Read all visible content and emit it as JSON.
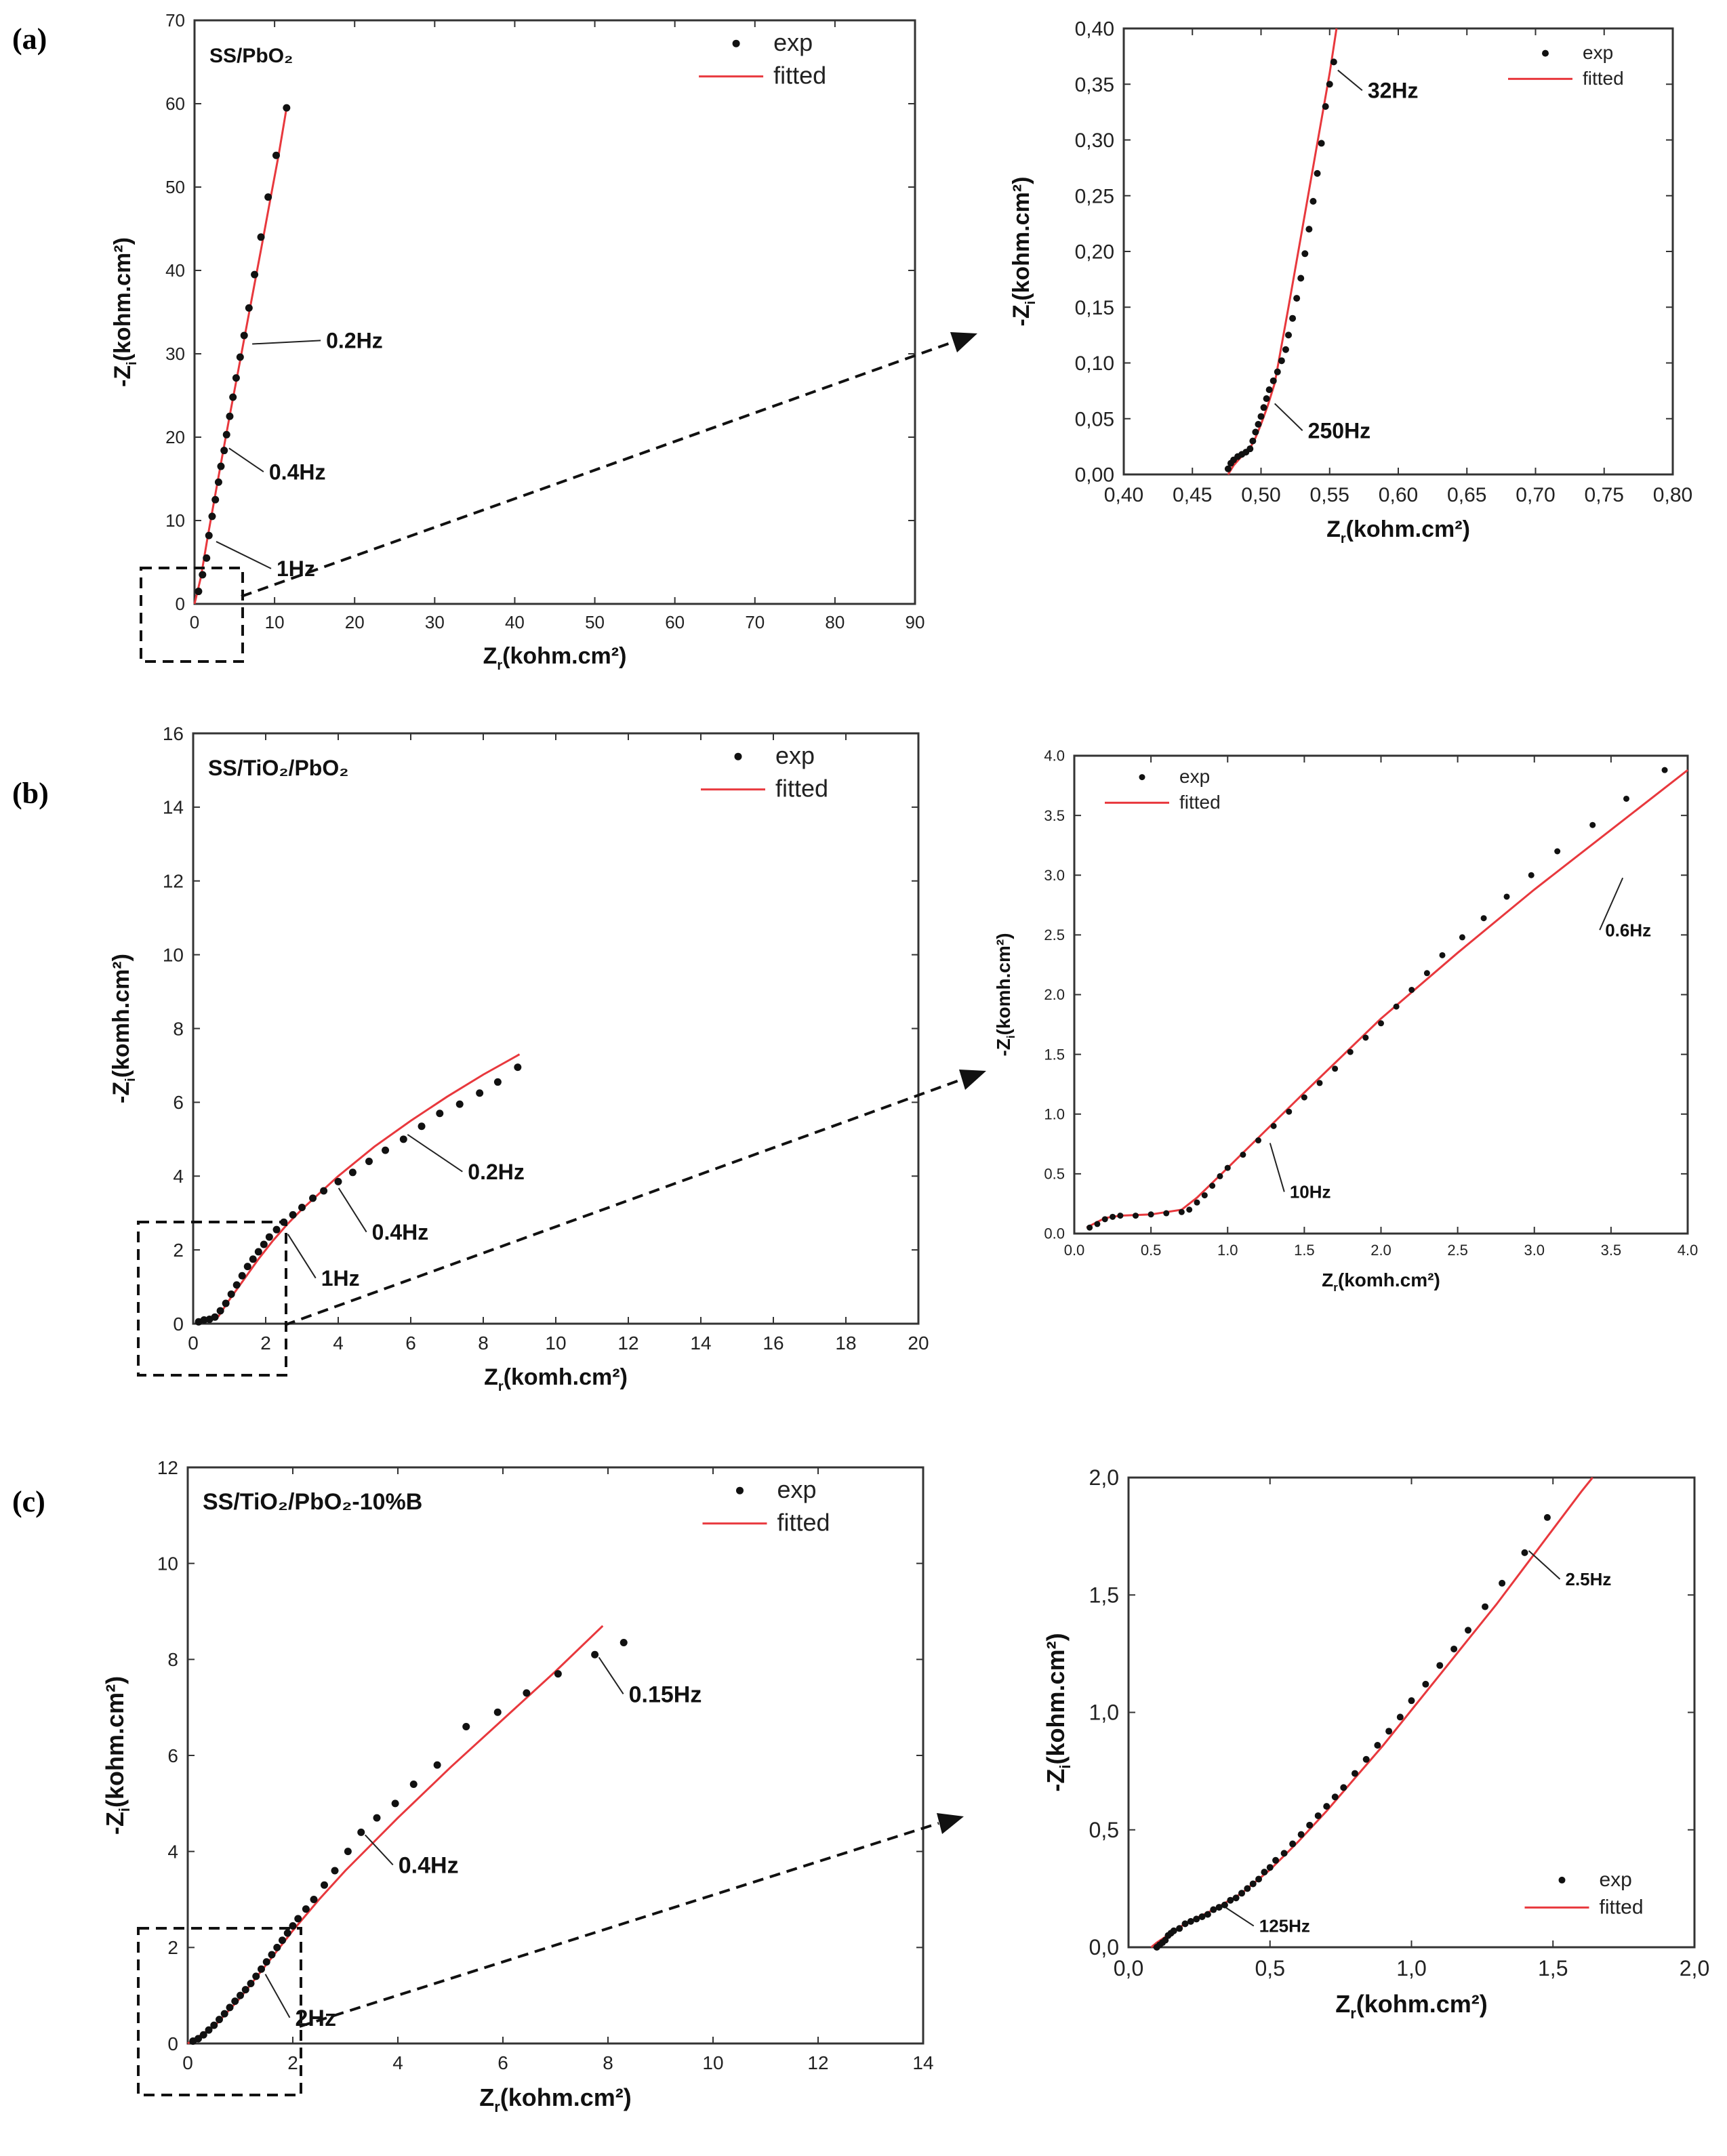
{
  "panel_labels": [
    "(a)",
    "(b)",
    "(c)"
  ],
  "legend": {
    "exp": "exp",
    "fitted": "fitted"
  },
  "colors": {
    "exp": "#111111",
    "fitted": "#e8383d",
    "axis": "#333333"
  },
  "chart_data": [
    {
      "id": "a_main",
      "type": "scatter",
      "panel": "(a)",
      "title": "SS/PbO₂",
      "xlabel": "Zr(kohm.cm²)",
      "ylabel": "-Zi(kohm.cm²)",
      "xlim": [
        0,
        90
      ],
      "ylim": [
        0,
        70
      ],
      "xticks": [
        0,
        10,
        20,
        30,
        40,
        50,
        60,
        70,
        80,
        90
      ],
      "yticks": [
        0,
        10,
        20,
        30,
        40,
        50,
        60,
        70
      ],
      "xtick_labels": [
        "0",
        "10",
        "20",
        "30",
        "40",
        "50",
        "60",
        "70",
        "80",
        "90"
      ],
      "ytick_labels": [
        "0",
        "10",
        "20",
        "30",
        "40",
        "50",
        "60",
        "70"
      ],
      "series": [
        {
          "name": "exp",
          "kind": "points",
          "x": [
            0.5,
            1.0,
            1.5,
            1.8,
            2.2,
            2.6,
            3.0,
            3.3,
            3.7,
            4.0,
            4.4,
            4.8,
            5.2,
            5.7,
            6.2,
            6.8,
            7.5,
            8.3,
            9.2,
            10.2,
            11.5
          ],
          "y": [
            1.5,
            3.5,
            5.5,
            8.2,
            10.5,
            12.5,
            14.6,
            16.5,
            18.4,
            20.3,
            22.5,
            24.8,
            27.1,
            29.6,
            32.2,
            35.5,
            39.5,
            44.0,
            48.8,
            53.8,
            59.5
          ]
        },
        {
          "name": "fitted",
          "kind": "line",
          "x": [
            0,
            0.8,
            1.6,
            2.5,
            3.5,
            4.5,
            5.5,
            6.5,
            7.5,
            8.5,
            9.5,
            10.5,
            11.5
          ],
          "y": [
            0,
            3.2,
            7.8,
            12.6,
            17.9,
            23.1,
            28.2,
            33.3,
            38.4,
            43.5,
            48.7,
            53.8,
            59.5
          ]
        }
      ],
      "annotations": [
        {
          "text": "0.2Hz",
          "x": 6.7,
          "y": 31.5
        },
        {
          "text": "0.4Hz",
          "x": 3.8,
          "y": 19.0
        },
        {
          "text": "1Hz",
          "x": 2.2,
          "y": 7.8
        }
      ],
      "legend_pos": "top-right"
    },
    {
      "id": "a_zoom",
      "type": "scatter",
      "panel": "(a)",
      "xlabel": "Zr(kohm.cm²)",
      "ylabel": "-Zi(kohm.cm²)",
      "xlim": [
        0.4,
        0.8
      ],
      "ylim": [
        0.0,
        0.4
      ],
      "xticks": [
        0.4,
        0.45,
        0.5,
        0.55,
        0.6,
        0.65,
        0.7,
        0.75,
        0.8
      ],
      "yticks": [
        0.0,
        0.05,
        0.1,
        0.15,
        0.2,
        0.25,
        0.3,
        0.35,
        0.4
      ],
      "xtick_labels": [
        "0,40",
        "0,45",
        "0,50",
        "0,55",
        "0,60",
        "0,65",
        "0,70",
        "0,75",
        "0,80"
      ],
      "ytick_labels": [
        "0,00",
        "0,05",
        "0,10",
        "0,15",
        "0,20",
        "0,25",
        "0,30",
        "0,35",
        "0,40"
      ],
      "series": [
        {
          "name": "exp",
          "kind": "points",
          "x": [
            0.476,
            0.478,
            0.48,
            0.483,
            0.486,
            0.489,
            0.492,
            0.494,
            0.496,
            0.498,
            0.5,
            0.502,
            0.504,
            0.506,
            0.509,
            0.512,
            0.515,
            0.518,
            0.52,
            0.523,
            0.526,
            0.529,
            0.532,
            0.535,
            0.538,
            0.541,
            0.544,
            0.547,
            0.55,
            0.553
          ],
          "y": [
            0.005,
            0.01,
            0.013,
            0.016,
            0.018,
            0.02,
            0.023,
            0.03,
            0.038,
            0.045,
            0.052,
            0.06,
            0.068,
            0.076,
            0.084,
            0.092,
            0.102,
            0.112,
            0.125,
            0.14,
            0.158,
            0.176,
            0.198,
            0.22,
            0.245,
            0.27,
            0.297,
            0.33,
            0.35,
            0.37
          ]
        },
        {
          "name": "fitted",
          "kind": "line",
          "x": [
            0.476,
            0.48,
            0.485,
            0.49,
            0.495,
            0.5,
            0.505,
            0.51,
            0.52,
            0.53,
            0.54,
            0.55,
            0.555
          ],
          "y": [
            0.0,
            0.008,
            0.015,
            0.02,
            0.03,
            0.045,
            0.062,
            0.082,
            0.15,
            0.22,
            0.29,
            0.36,
            0.4
          ]
        }
      ],
      "annotations": [
        {
          "text": "32Hz",
          "x": 0.553,
          "y": 0.365
        },
        {
          "text": "250Hz",
          "x": 0.507,
          "y": 0.066
        }
      ],
      "legend_pos": "top-right"
    },
    {
      "id": "b_main",
      "type": "scatter",
      "panel": "(b)",
      "title": "SS/TiO₂/PbO₂",
      "xlabel": "Zr(komh.cm²)",
      "ylabel": "-Zi(komh.cm²)",
      "xlim": [
        0,
        20
      ],
      "ylim": [
        0,
        16
      ],
      "xticks": [
        0,
        2,
        4,
        6,
        8,
        10,
        12,
        14,
        16,
        18,
        20
      ],
      "yticks": [
        0,
        2,
        4,
        6,
        8,
        10,
        12,
        14,
        16
      ],
      "xtick_labels": [
        "0",
        "2",
        "4",
        "6",
        "8",
        "10",
        "12",
        "14",
        "16",
        "18",
        "20"
      ],
      "ytick_labels": [
        "0",
        "2",
        "4",
        "6",
        "8",
        "10",
        "12",
        "14",
        "16"
      ],
      "series": [
        {
          "name": "exp",
          "kind": "points",
          "x": [
            0.15,
            0.3,
            0.45,
            0.6,
            0.75,
            0.9,
            1.05,
            1.2,
            1.35,
            1.5,
            1.65,
            1.8,
            1.95,
            2.1,
            2.3,
            2.5,
            2.75,
            3.0,
            3.3,
            3.6,
            4.0,
            4.4,
            4.85,
            5.3,
            5.8,
            6.3,
            6.8,
            7.35,
            7.9,
            8.4,
            8.95
          ],
          "y": [
            0.05,
            0.1,
            0.12,
            0.18,
            0.35,
            0.55,
            0.8,
            1.05,
            1.3,
            1.55,
            1.75,
            1.95,
            2.15,
            2.35,
            2.55,
            2.75,
            2.95,
            3.15,
            3.4,
            3.6,
            3.85,
            4.1,
            4.4,
            4.7,
            5.0,
            5.35,
            5.7,
            5.95,
            6.25,
            6.55,
            6.95
          ]
        },
        {
          "name": "fitted",
          "kind": "line",
          "x": [
            0.1,
            0.4,
            0.7,
            1.0,
            1.4,
            1.8,
            2.2,
            2.6,
            3.0,
            3.5,
            4.0,
            5.0,
            6.0,
            7.0,
            8.0,
            9.0
          ],
          "y": [
            0.05,
            0.12,
            0.2,
            0.65,
            1.2,
            1.75,
            2.25,
            2.7,
            3.1,
            3.55,
            4.0,
            4.8,
            5.5,
            6.15,
            6.75,
            7.3
          ]
        }
      ],
      "annotations": [
        {
          "text": "0.2Hz",
          "x": 5.8,
          "y": 5.2
        },
        {
          "text": "0.4Hz",
          "x": 3.9,
          "y": 3.75
        },
        {
          "text": "1Hz",
          "x": 2.5,
          "y": 2.5
        }
      ],
      "legend_pos": "top-right"
    },
    {
      "id": "b_zoom",
      "type": "scatter",
      "panel": "(b)",
      "xlabel": "Zr(komh.cm²)",
      "ylabel": "-Zi(komh.cm²)",
      "xlim": [
        0.0,
        4.0
      ],
      "ylim": [
        0.0,
        4.0
      ],
      "xticks": [
        0.0,
        0.5,
        1.0,
        1.5,
        2.0,
        2.5,
        3.0,
        3.5,
        4.0
      ],
      "yticks": [
        0.0,
        0.5,
        1.0,
        1.5,
        2.0,
        2.5,
        3.0,
        3.5,
        4.0
      ],
      "xtick_labels": [
        "0.0",
        "0.5",
        "1.0",
        "1.5",
        "2.0",
        "2.5",
        "3.0",
        "3.5",
        "4.0"
      ],
      "ytick_labels": [
        "0.0",
        "0.5",
        "1.0",
        "1.5",
        "2.0",
        "2.5",
        "3.0",
        "3.5",
        "4.0"
      ],
      "series": [
        {
          "name": "exp",
          "kind": "points",
          "x": [
            0.1,
            0.15,
            0.2,
            0.25,
            0.3,
            0.4,
            0.5,
            0.6,
            0.7,
            0.75,
            0.8,
            0.85,
            0.9,
            0.95,
            1.0,
            1.1,
            1.2,
            1.3,
            1.4,
            1.5,
            1.6,
            1.7,
            1.8,
            1.9,
            2.0,
            2.1,
            2.2,
            2.3,
            2.4,
            2.53,
            2.67,
            2.82,
            2.98,
            3.15,
            3.38,
            3.6,
            3.85
          ],
          "y": [
            0.05,
            0.08,
            0.12,
            0.14,
            0.15,
            0.15,
            0.16,
            0.17,
            0.18,
            0.2,
            0.26,
            0.32,
            0.4,
            0.48,
            0.55,
            0.66,
            0.78,
            0.9,
            1.02,
            1.14,
            1.26,
            1.38,
            1.52,
            1.64,
            1.76,
            1.9,
            2.04,
            2.18,
            2.33,
            2.48,
            2.64,
            2.82,
            3.0,
            3.2,
            3.42,
            3.64,
            3.88
          ]
        },
        {
          "name": "fitted",
          "kind": "line",
          "x": [
            0.08,
            0.2,
            0.3,
            0.5,
            0.7,
            0.8,
            1.0,
            1.5,
            2.0,
            2.5,
            3.0,
            3.5,
            4.0
          ],
          "y": [
            0.05,
            0.13,
            0.15,
            0.16,
            0.2,
            0.3,
            0.55,
            1.18,
            1.8,
            2.35,
            2.88,
            3.38,
            3.88
          ]
        }
      ],
      "annotations": [
        {
          "text": "0.6Hz",
          "x": 3.55,
          "y": 3.0
        },
        {
          "text": "10Hz",
          "x": 1.25,
          "y": 0.78
        }
      ],
      "legend_pos": "top-left"
    },
    {
      "id": "c_main",
      "type": "scatter",
      "panel": "(c)",
      "title": "SS/TiO₂/PbO₂-10%B",
      "xlabel": "Zr(kohm.cm²)",
      "ylabel": "-Zi(kohm.cm²)",
      "xlim": [
        0,
        14
      ],
      "ylim": [
        0,
        12
      ],
      "xticks": [
        0,
        2,
        4,
        6,
        8,
        10,
        12,
        14
      ],
      "yticks": [
        0,
        2,
        4,
        6,
        8,
        10,
        12
      ],
      "xtick_labels": [
        "0",
        "2",
        "4",
        "6",
        "8",
        "10",
        "12",
        "14"
      ],
      "ytick_labels": [
        "0",
        "2",
        "4",
        "6",
        "8",
        "10",
        "12"
      ],
      "series": [
        {
          "name": "exp",
          "kind": "points",
          "x": [
            0.1,
            0.2,
            0.3,
            0.4,
            0.5,
            0.6,
            0.7,
            0.8,
            0.9,
            1.0,
            1.1,
            1.2,
            1.3,
            1.4,
            1.5,
            1.6,
            1.7,
            1.8,
            1.9,
            2.0,
            2.1,
            2.25,
            2.4,
            2.6,
            2.8,
            3.05,
            3.3,
            3.6,
            3.95,
            4.3,
            4.75,
            5.3,
            5.9,
            6.45,
            7.05,
            7.75,
            8.3
          ],
          "y": [
            0.05,
            0.1,
            0.18,
            0.28,
            0.38,
            0.5,
            0.62,
            0.75,
            0.88,
            1.0,
            1.12,
            1.25,
            1.4,
            1.55,
            1.7,
            1.85,
            2.0,
            2.15,
            2.3,
            2.45,
            2.6,
            2.8,
            3.0,
            3.3,
            3.6,
            4.0,
            4.4,
            4.7,
            5.0,
            5.4,
            5.8,
            6.6,
            6.9,
            7.3,
            7.7,
            8.1,
            8.35
          ]
        },
        {
          "name": "fitted",
          "kind": "line",
          "x": [
            0.0,
            0.5,
            1.0,
            1.5,
            2.0,
            2.5,
            3.0,
            3.5,
            4.0,
            5.0,
            6.0,
            7.0,
            7.9
          ],
          "y": [
            0.0,
            0.35,
            0.95,
            1.65,
            2.35,
            3.0,
            3.6,
            4.15,
            4.7,
            5.75,
            6.75,
            7.75,
            8.7
          ]
        }
      ],
      "annotations": [
        {
          "text": "0.15Hz",
          "x": 7.75,
          "y": 8.1
        },
        {
          "text": "0.4Hz",
          "x": 3.3,
          "y": 4.4
        },
        {
          "text": "2Hz",
          "x": 1.4,
          "y": 1.5
        }
      ],
      "legend_pos": "top-right"
    },
    {
      "id": "c_zoom",
      "type": "scatter",
      "panel": "(c)",
      "xlabel": "Zr(kohm.cm²)",
      "ylabel": "-Zi(kohm.cm²)",
      "xlim": [
        0.0,
        2.0
      ],
      "ylim": [
        0.0,
        2.0
      ],
      "xticks": [
        0.0,
        0.5,
        1.0,
        1.5,
        2.0
      ],
      "yticks": [
        0.0,
        0.5,
        1.0,
        1.5,
        2.0
      ],
      "xtick_labels": [
        "0,0",
        "0,5",
        "1,0",
        "1,5",
        "2,0"
      ],
      "ytick_labels": [
        "0,0",
        "0,5",
        "1,0",
        "1,5",
        "2,0"
      ],
      "series": [
        {
          "name": "exp",
          "kind": "points",
          "x": [
            0.1,
            0.11,
            0.12,
            0.13,
            0.14,
            0.15,
            0.16,
            0.18,
            0.2,
            0.22,
            0.24,
            0.26,
            0.28,
            0.3,
            0.32,
            0.34,
            0.36,
            0.38,
            0.4,
            0.42,
            0.44,
            0.46,
            0.48,
            0.5,
            0.52,
            0.55,
            0.58,
            0.61,
            0.64,
            0.67,
            0.7,
            0.73,
            0.76,
            0.8,
            0.84,
            0.88,
            0.92,
            0.96,
            1.0,
            1.05,
            1.1,
            1.15,
            1.2,
            1.26,
            1.32,
            1.4,
            1.48
          ],
          "y": [
            0.0,
            0.01,
            0.02,
            0.03,
            0.05,
            0.06,
            0.07,
            0.08,
            0.1,
            0.11,
            0.12,
            0.13,
            0.14,
            0.16,
            0.17,
            0.18,
            0.2,
            0.21,
            0.23,
            0.25,
            0.27,
            0.29,
            0.32,
            0.34,
            0.37,
            0.4,
            0.44,
            0.48,
            0.52,
            0.56,
            0.6,
            0.64,
            0.68,
            0.74,
            0.8,
            0.86,
            0.92,
            0.98,
            1.05,
            1.12,
            1.2,
            1.27,
            1.35,
            1.45,
            1.55,
            1.68,
            1.83
          ]
        },
        {
          "name": "fitted",
          "kind": "line",
          "x": [
            0.08,
            0.1,
            0.15,
            0.2,
            0.3,
            0.4,
            0.5,
            0.6,
            0.7,
            0.8,
            0.9,
            1.0,
            1.1,
            1.2,
            1.3,
            1.4,
            1.5,
            1.6,
            1.64
          ],
          "y": [
            0.0,
            0.02,
            0.06,
            0.1,
            0.16,
            0.23,
            0.33,
            0.45,
            0.58,
            0.72,
            0.86,
            1.01,
            1.16,
            1.31,
            1.46,
            1.62,
            1.78,
            1.94,
            2.0
          ]
        }
      ],
      "annotations": [
        {
          "text": "2.5Hz",
          "x": 1.4,
          "y": 1.7
        },
        {
          "text": "125Hz",
          "x": 0.33,
          "y": 0.18
        }
      ],
      "legend_pos": "bottom-right"
    }
  ]
}
